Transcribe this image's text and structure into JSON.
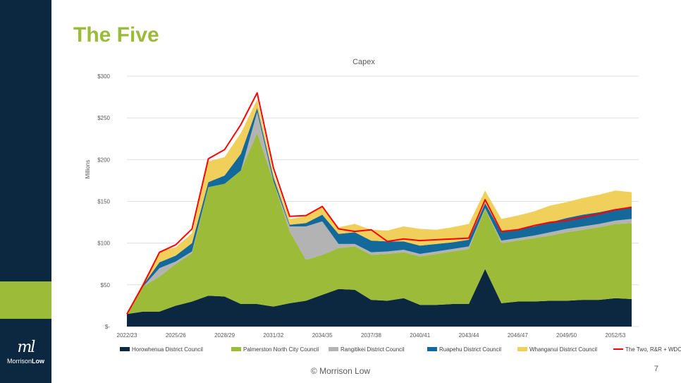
{
  "slide": {
    "title": "The Five",
    "footer": "© Morrison Low",
    "page_number": "7",
    "logo_mark": "ml",
    "logo_brand_part1": "Morrison",
    "logo_brand_part2": "Low"
  },
  "colors": {
    "sidebar": "#0c2841",
    "accent": "#9bbb39"
  },
  "chart_data": {
    "type": "area",
    "stacked": true,
    "title": "Capex",
    "ylabel": "Millions",
    "xlabel": "",
    "ylim": [
      0,
      300
    ],
    "y_ticks": [
      {
        "value": 0,
        "label": "$-"
      },
      {
        "value": 50,
        "label": "$50"
      },
      {
        "value": 100,
        "label": "$100"
      },
      {
        "value": 150,
        "label": "$150"
      },
      {
        "value": 200,
        "label": "$200"
      },
      {
        "value": 250,
        "label": "$250"
      },
      {
        "value": 300,
        "label": "$300"
      }
    ],
    "x": [
      "2022/23",
      "2023/24",
      "2024/25",
      "2025/26",
      "2026/27",
      "2027/28",
      "2028/29",
      "2029/30",
      "2030/31",
      "2031/32",
      "2032/33",
      "2033/34",
      "2034/35",
      "2035/36",
      "2036/37",
      "2037/38",
      "2038/39",
      "2039/40",
      "2040/41",
      "2041/42",
      "2042/43",
      "2043/44",
      "2044/45",
      "2045/46",
      "2046/47",
      "2047/48",
      "2048/49",
      "2049/50",
      "2050/51",
      "2051/52",
      "2052/53",
      "2053/54"
    ],
    "x_tick_labels": [
      "2022/23",
      "2025/26",
      "2028/29",
      "2031/32",
      "2034/35",
      "2037/38",
      "2040/41",
      "2043/44",
      "2046/47",
      "2049/50",
      "2052/53"
    ],
    "x_tick_every": 3,
    "legend_position": "bottom",
    "grid": true,
    "series": [
      {
        "name": "Horowhenua District Council",
        "color": "#0c2841",
        "values": [
          15,
          18,
          18,
          25,
          30,
          37,
          36,
          27,
          27,
          24,
          28,
          31,
          38,
          45,
          44,
          32,
          31,
          34,
          26,
          26,
          27,
          27,
          69,
          28,
          30,
          30,
          31,
          31,
          32,
          32,
          34,
          33
        ]
      },
      {
        "name": "Palmerston North City Council",
        "color": "#9bbb39",
        "values": [
          0,
          30,
          42,
          50,
          58,
          130,
          135,
          160,
          205,
          150,
          86,
          49,
          48,
          49,
          52,
          54,
          56,
          55,
          58,
          61,
          63,
          66,
          72,
          72,
          73,
          76,
          78,
          82,
          84,
          87,
          89,
          91
        ]
      },
      {
        "name": "Rangitikei District Council",
        "color": "#b3b3b3",
        "values": [
          0,
          0,
          10,
          3,
          2,
          0,
          0,
          0,
          25,
          0,
          6,
          40,
          40,
          5,
          3,
          3,
          3,
          3,
          3,
          3,
          3,
          3,
          1,
          3,
          3,
          3,
          4,
          4,
          4,
          4,
          4,
          5
        ]
      },
      {
        "name": "Ruapehu District Council",
        "color": "#14699b",
        "values": [
          0,
          2,
          7,
          7,
          10,
          6,
          10,
          20,
          5,
          5,
          2,
          4,
          8,
          12,
          14,
          14,
          12,
          10,
          10,
          9,
          8,
          8,
          6,
          10,
          11,
          11,
          12,
          13,
          14,
          14,
          14,
          14
        ]
      },
      {
        "name": "Whanganui District Council",
        "color": "#f0d05a",
        "values": [
          0,
          3,
          13,
          10,
          12,
          25,
          22,
          25,
          10,
          5,
          7,
          8,
          9,
          8,
          10,
          13,
          13,
          18,
          20,
          17,
          18,
          19,
          15,
          16,
          16,
          18,
          20,
          19,
          20,
          21,
          22,
          18
        ]
      },
      {
        "name": "The Two, R&R + WDC",
        "color": "#ff0000",
        "kind": "line",
        "values": [
          15,
          50,
          89,
          98,
          117,
          201,
          212,
          242,
          280,
          190,
          132,
          133,
          144,
          117,
          114,
          116,
          102,
          105,
          103,
          104,
          105,
          106,
          152,
          114,
          116,
          121,
          125,
          127,
          131,
          135,
          140,
          143
        ]
      }
    ]
  }
}
